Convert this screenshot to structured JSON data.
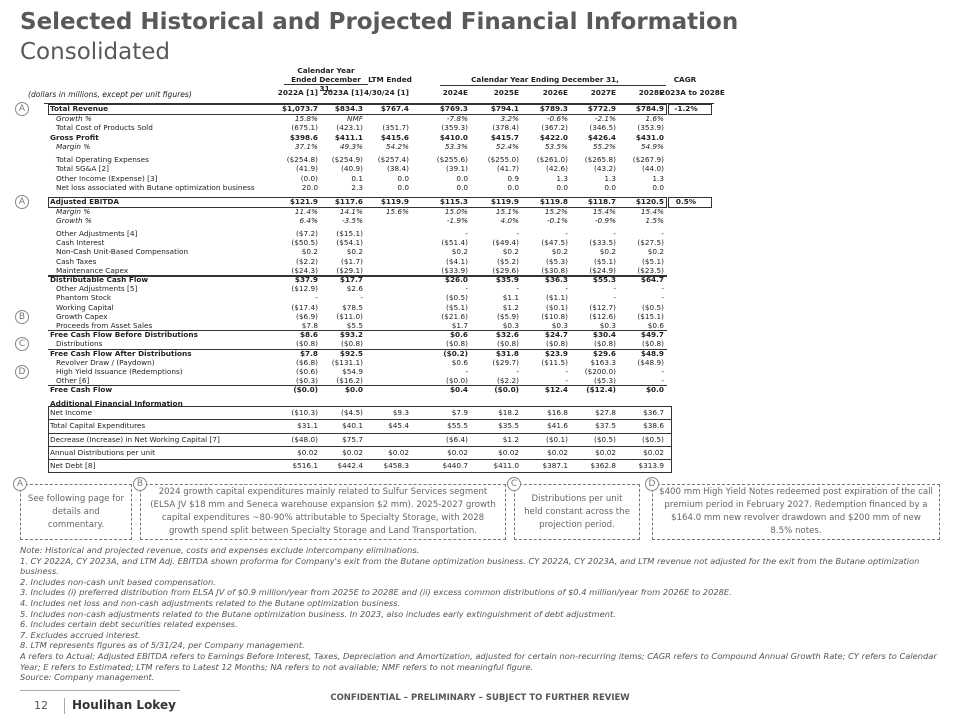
{
  "header": {
    "title": "Selected Historical and Projected Financial Information",
    "subtitle": "Consolidated"
  },
  "table": {
    "units": "(dollars in millions, except per unit figures)",
    "group_headers": [
      "Calendar Year Ended December 31,",
      "LTM Ended",
      "Calendar Year Ending December 31,",
      "CAGR"
    ],
    "columns": [
      "2022A [1]",
      "2023A [1]",
      "4/30/24 [1]",
      "2024E",
      "2025E",
      "2026E",
      "2027E",
      "2028E",
      "2023A to 2028E"
    ],
    "rows": [
      {
        "marker": "A",
        "label": "Total Revenue",
        "values": [
          "$1,073.7",
          "$834.3",
          "$767.4",
          "$769.3",
          "$794.1",
          "$789.3",
          "$772.9",
          "$784.9",
          "-1.2%"
        ]
      },
      {
        "label": "Growth %",
        "values": [
          "15.8%",
          "NMF",
          null,
          "-7.8%",
          "3.2%",
          "-0.6%",
          "-2.1%",
          "1.6%",
          null
        ]
      },
      {
        "label": "Total Cost of Products Sold",
        "values": [
          "(675.1)",
          "(423.1)",
          "(351.7)",
          "(359.3)",
          "(378.4)",
          "(367.2)",
          "(346.5)",
          "(353.9)",
          null
        ]
      },
      {
        "label": "Gross Profit",
        "values": [
          "$398.6",
          "$411.1",
          "$415.6",
          "$410.0",
          "$415.7",
          "$422.0",
          "$426.4",
          "$431.0",
          null
        ]
      },
      {
        "label": "Margin %",
        "values": [
          "37.1%",
          "49.3%",
          "54.2%",
          "53.3%",
          "52.4%",
          "53.5%",
          "55.2%",
          "54.9%",
          null
        ]
      },
      {
        "label": "Total Operating Expenses",
        "values": [
          "($254.8)",
          "($254.9)",
          "($257.4)",
          "($255.6)",
          "($255.0)",
          "($261.0)",
          "($265.8)",
          "($267.9)",
          null
        ]
      },
      {
        "label": "Total SG&A [2]",
        "values": [
          "(41.9)",
          "(40.9)",
          "(38.4)",
          "(39.1)",
          "(41.7)",
          "(42.6)",
          "(43.2)",
          "(44.0)",
          null
        ]
      },
      {
        "label": "Other Income (Expense) [3]",
        "values": [
          "(0.0)",
          "0.1",
          "0.0",
          "0.0",
          "0.9",
          "1.3",
          "1.3",
          "1.3",
          null
        ]
      },
      {
        "label": "Net loss associated with Butane optimization business",
        "values": [
          "20.0",
          "2.3",
          "0.0",
          "0.0",
          "0.0",
          "0.0",
          "0.0",
          "0.0",
          null
        ]
      },
      {
        "marker": "A",
        "label": "Adjusted EBITDA",
        "values": [
          "$121.9",
          "$117.6",
          "$119.9",
          "$115.3",
          "$119.9",
          "$119.8",
          "$118.7",
          "$120.5",
          "0.5%"
        ]
      },
      {
        "label": "Margin %",
        "values": [
          "11.4%",
          "14.1%",
          "15.6%",
          "15.0%",
          "15.1%",
          "15.2%",
          "15.4%",
          "15.4%",
          null
        ]
      },
      {
        "label": "Growth %",
        "values": [
          "6.4%",
          "-3.5%",
          null,
          "-1.9%",
          "4.0%",
          "-0.1%",
          "-0.9%",
          "1.5%",
          null
        ]
      },
      {
        "label": "Other Adjustments [4]",
        "values": [
          "($7.2)",
          "($15.1)",
          null,
          "-",
          "-",
          "-",
          "-",
          "-",
          null
        ]
      },
      {
        "label": "Cash Interest",
        "values": [
          "($50.5)",
          "($54.1)",
          null,
          "($51.4)",
          "($49.4)",
          "($47.5)",
          "($33.5)",
          "($27.5)",
          null
        ]
      },
      {
        "label": "Non-Cash Unit-Based Compensation",
        "values": [
          "$0.2",
          "$0.2",
          null,
          "$0.2",
          "$0.2",
          "$0.2",
          "$0.2",
          "$0.2",
          null
        ]
      },
      {
        "label": "Cash Taxes",
        "values": [
          "($2.2)",
          "($1.7)",
          null,
          "($4.1)",
          "($5.2)",
          "($5.3)",
          "($5.1)",
          "($5.1)",
          null
        ]
      },
      {
        "label": "Maintenance Capex",
        "values": [
          "($24.3)",
          "($29.1)",
          null,
          "($33.9)",
          "($29.6)",
          "($30.8)",
          "($24.9)",
          "($23.5)",
          null
        ]
      },
      {
        "label": "Distributable Cash Flow",
        "values": [
          "$37.9",
          "$17.7",
          null,
          "$26.0",
          "$35.9",
          "$36.3",
          "$55.3",
          "$64.7",
          null
        ]
      },
      {
        "label": "Other Adjustments [5]",
        "values": [
          "($12.9)",
          "$2.6",
          null,
          "-",
          "-",
          "-",
          "-",
          "-",
          null
        ]
      },
      {
        "label": "Phantom Stock",
        "values": [
          "-",
          "-",
          null,
          "($0.5)",
          "$1.1",
          "($1.1)",
          "-",
          "-",
          null
        ]
      },
      {
        "label": "Working Capital",
        "values": [
          "($17.4)",
          "$78.5",
          null,
          "($5.1)",
          "$1.2",
          "($0.1)",
          "($12.7)",
          "($0.5)",
          null
        ]
      },
      {
        "marker": "B",
        "label": "Growth Capex",
        "values": [
          "($6.9)",
          "($11.0)",
          null,
          "($21.6)",
          "($5.9)",
          "($10.8)",
          "($12.6)",
          "($15.1)",
          null
        ]
      },
      {
        "label": "Proceeds from Asset Sales",
        "values": [
          "$7.8",
          "$5.5",
          null,
          "$1.7",
          "$0.3",
          "$0.3",
          "$0.3",
          "$0.6",
          null
        ]
      },
      {
        "label": "Free Cash Flow Before Distributions",
        "values": [
          "$8.6",
          "$93.2",
          null,
          "$0.6",
          "$32.6",
          "$24.7",
          "$30.4",
          "$49.7",
          null
        ]
      },
      {
        "marker": "C",
        "label": "Distributions",
        "values": [
          "($0.8)",
          "($0.8)",
          null,
          "($0.8)",
          "($0.8)",
          "($0.8)",
          "($0.8)",
          "($0.8)",
          null
        ]
      },
      {
        "label": "Free Cash Flow After Distributions",
        "values": [
          "$7.8",
          "$92.5",
          null,
          "($0.2)",
          "$31.8",
          "$23.9",
          "$29.6",
          "$48.9",
          null
        ]
      },
      {
        "label": "Revolver Draw / (Paydown)",
        "values": [
          "($6.8)",
          "($131.1)",
          null,
          "$0.6",
          "($29.7)",
          "($11.5)",
          "$163.3",
          "($48.9)",
          null
        ]
      },
      {
        "marker": "D",
        "label": "High Yield Issuance (Redemptions)",
        "values": [
          "($0.6)",
          "$54.9",
          null,
          "-",
          "-",
          "-",
          "($200.0)",
          "-",
          null
        ]
      },
      {
        "label": "Other [6]",
        "values": [
          "($0.3)",
          "($16.2)",
          null,
          "($0.0)",
          "($2.2)",
          "-",
          "($5.3)",
          "-",
          null
        ]
      },
      {
        "label": "Free Cash Flow",
        "values": [
          "($0.0)",
          "$0.0",
          null,
          "$0.4",
          "($0.0)",
          "$12.4",
          "($12.4)",
          "$0.0",
          null
        ]
      },
      {
        "label": "Additional Financial Information",
        "values": [
          null,
          null,
          null,
          null,
          null,
          null,
          null,
          null,
          null
        ]
      },
      {
        "label": "Net Income",
        "values": [
          "($10.3)",
          "($4.5)",
          "$9.3",
          "$7.9",
          "$18.2",
          "$16.8",
          "$27.8",
          "$36.7",
          null
        ]
      },
      {
        "label": "Total Capital Expenditures",
        "values": [
          "$31.1",
          "$40.1",
          "$45.4",
          "$55.5",
          "$35.5",
          "$41.6",
          "$37.5",
          "$38.6",
          null
        ]
      },
      {
        "label": "Decrease (Increase) in Net Working Capital [7]",
        "values": [
          "($48.0)",
          "$75.7",
          null,
          "($6.4)",
          "$1.2",
          "($0.1)",
          "($0.5)",
          "($0.5)",
          null
        ]
      },
      {
        "label": "Annual Distributions per unit",
        "values": [
          "$0.02",
          "$0.02",
          "$0.02",
          "$0.02",
          "$0.02",
          "$0.02",
          "$0.02",
          "$0.02",
          null
        ]
      },
      {
        "label": "Net Debt [8]",
        "values": [
          "$516.1",
          "$442.4",
          "$458.3",
          "$440.7",
          "$411.0",
          "$387.1",
          "$362.8",
          "$313.9",
          null
        ]
      }
    ]
  },
  "callouts": [
    {
      "letter": "A",
      "text": "See following page for details and commentary."
    },
    {
      "letter": "B",
      "text": "2024 growth capital expenditures mainly related to Sulfur Services segment (ELSA JV $18 mm and Seneca warehouse expansion $2 mm). 2025-2027 growth capital expenditures ~80-90% attributable to Specialty Storage, with 2028 growth spend split between Specialty Storage and Land Transportation."
    },
    {
      "letter": "C",
      "text": "Distributions per unit held constant across the projection period."
    },
    {
      "letter": "D",
      "text": "$400 mm High Yield Notes redeemed post expiration of the call premium period in February 2027. Redemption financed by a $164.0 mm new revolver drawdown and $200 mm of new 8.5% notes."
    }
  ],
  "notes": [
    "Note: Historical and projected revenue, costs and expenses exclude intercompany eliminations.",
    "1. CY 2022A, CY 2023A, and LTM Adj. EBITDA shown proforma for Company's exit from the Butane optimization business. CY 2022A, CY 2023A, and LTM revenue not adjusted for the exit from the Butane optimization business.",
    "2. Includes non-cash unit based compensation.",
    "3. Includes (i) preferred distribution from ELSA JV of $0.9 million/year from 2025E to 2028E and (ii) excess common distributions of $0.4 million/year from 2026E to 2028E.",
    "4. Includes net loss and non-cash adjustments related to the Butane optimization business.",
    "5. Includes non-cash adjustments related to the Butane optimization business. In 2023, also includes early extinguishment of debt adjustment.",
    "6. Includes certain debt securities related expenses.",
    "7. Excludes accrued interest.",
    "8. LTM represents figures as of 5/31/24, per Company management.",
    "A refers to Actual; Adjusted EBITDA refers to Earnings Before Interest, Taxes, Depreciation and Amortization, adjusted for certain non-recurring items; CAGR refers to Compound Annual Growth Rate; CY refers to Calendar Year; E refers to Estimated; LTM refers to Latest 12 Months; NA refers to not available; NMF refers to not meaningful figure.",
    "Source: Company management."
  ],
  "footer": {
    "page": "12",
    "brand": "Houlihan Lokey",
    "confidential": "CONFIDENTIAL – PRELIMINARY – SUBJECT TO FURTHER REVIEW"
  }
}
